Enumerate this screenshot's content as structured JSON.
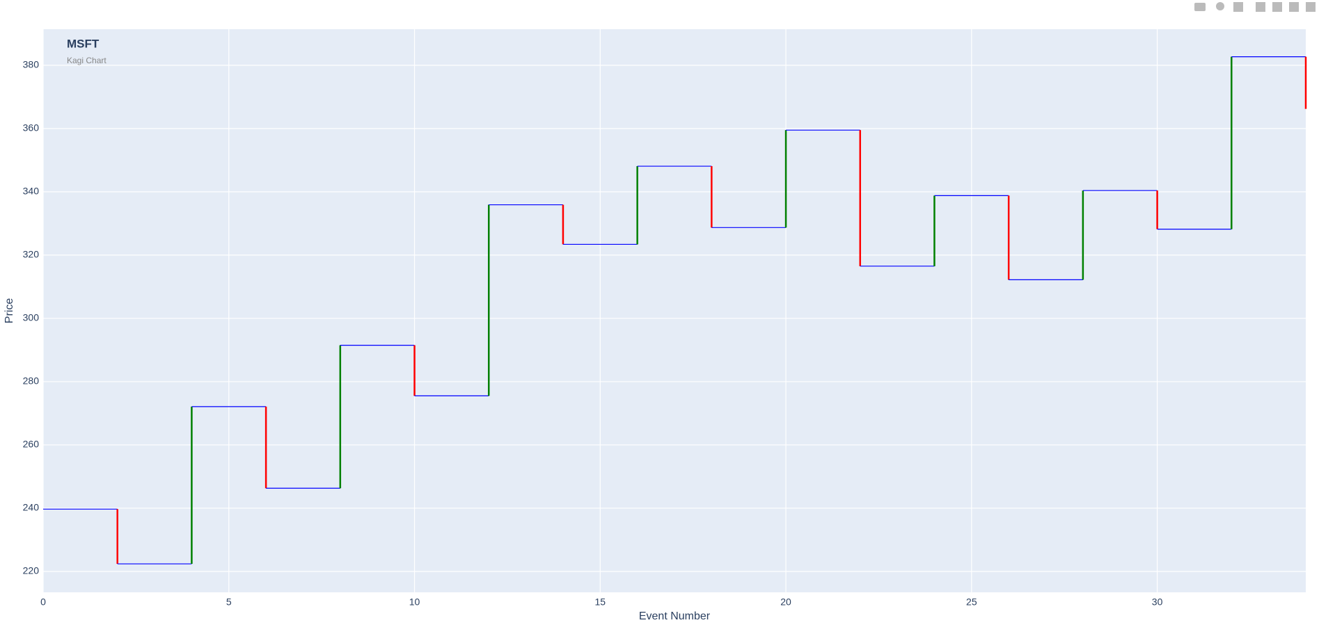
{
  "chart_data": {
    "type": "kagi",
    "title": "MSFT",
    "subtitle": "Kagi Chart",
    "x_label": "Event Number",
    "y_label": "Price",
    "x": [
      0,
      2,
      4,
      6,
      8,
      10,
      12,
      14,
      16,
      18,
      20,
      22,
      24,
      26,
      28,
      30,
      32,
      34
    ],
    "values": [
      239.7,
      222.4,
      272.1,
      246.3,
      291.5,
      275.5,
      335.9,
      323.4,
      348.1,
      328.7,
      359.5,
      316.5,
      338.8,
      312.2,
      340.4,
      328.2,
      382.7,
      366.2
    ],
    "color": "#0000ff",
    "up_color": "#008000",
    "down_color": "#ff0000",
    "xlim": [
      0,
      34
    ],
    "ylim": [
      213.4,
      391.4
    ],
    "xticks": [
      0,
      5,
      10,
      15,
      20,
      25,
      30
    ],
    "yticks": [
      220,
      240,
      260,
      280,
      300,
      320,
      340,
      360,
      380
    ],
    "grid": true
  }
}
